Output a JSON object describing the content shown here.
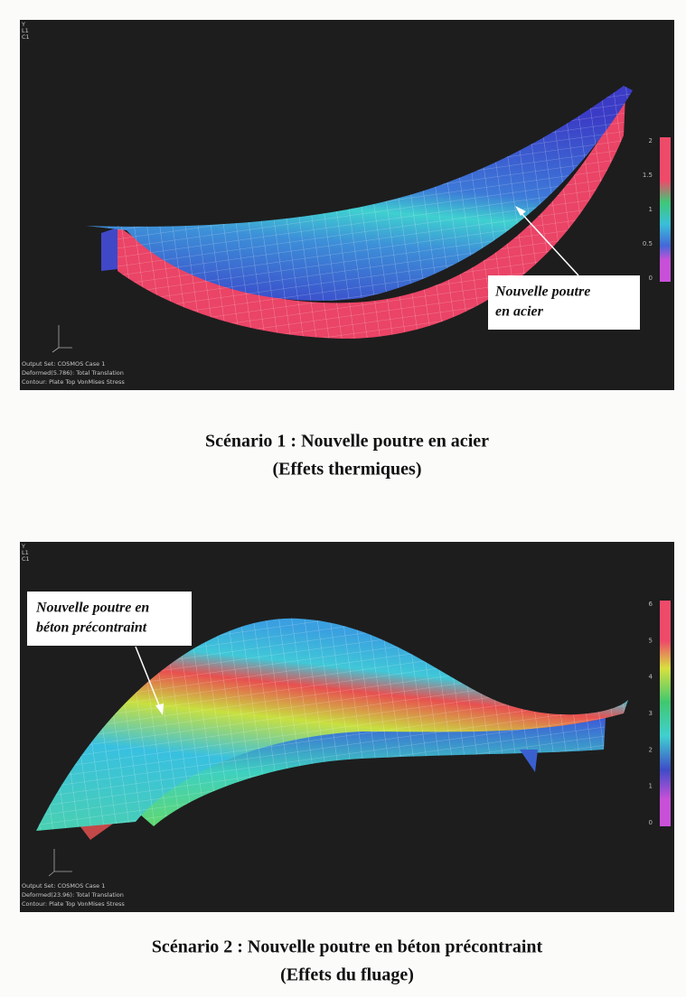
{
  "figures": [
    {
      "header": [
        "Y",
        "L1",
        "C1"
      ],
      "scale_labels": [
        2,
        1.5,
        1,
        0.5,
        0
      ],
      "info": [
        "Output Set: COSMOS Case 1",
        "Deformed(5.786): Total Translation",
        "Contour: Plate Top VonMises Stress"
      ],
      "callout": [
        "Nouvelle poutre",
        "en acier"
      ],
      "caption": [
        "Scénario 1 : Nouvelle poutre en acier",
        "(Effets thermiques)"
      ]
    },
    {
      "header": [
        "Y",
        "L1",
        "C1"
      ],
      "scale_labels": [
        6,
        5,
        4,
        3,
        2,
        1,
        0
      ],
      "info": [
        "Output Set: COSMOS Case 1",
        "Deformed(23.96): Total Translation",
        "Contour: Plate Top VonMises Stress"
      ],
      "callout": [
        "Nouvelle poutre en",
        "béton précontraint"
      ],
      "caption": [
        "Scénario 2 : Nouvelle poutre en béton précontraint",
        "(Effets du fluage)"
      ]
    }
  ]
}
